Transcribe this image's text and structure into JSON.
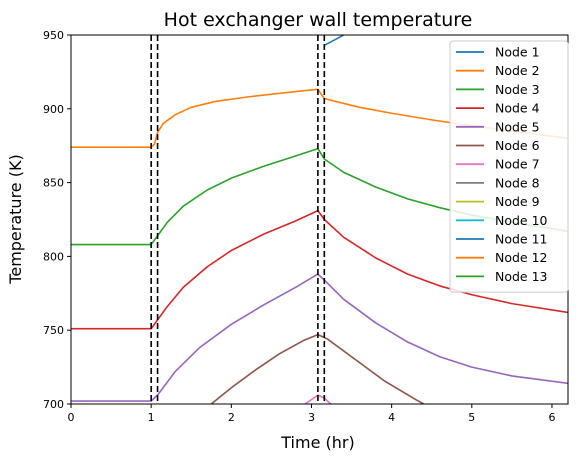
{
  "chart_data": {
    "type": "line",
    "title": "Hot exchanger wall temperature",
    "xlabel": "Time (hr)",
    "ylabel": "Temperature (K)",
    "xlim": [
      0,
      6.2
    ],
    "ylim": [
      700,
      950
    ],
    "xticks": [
      0,
      1,
      2,
      3,
      4,
      5,
      6
    ],
    "yticks": [
      700,
      750,
      800,
      850,
      900,
      950
    ],
    "xtick_labels": [
      "0",
      "1",
      "2",
      "3",
      "4",
      "5",
      "6"
    ],
    "ytick_labels": [
      "700",
      "750",
      "800",
      "850",
      "900",
      "950"
    ],
    "grid": false,
    "legend_position": "top-right",
    "vlines": [
      1.0,
      1.08,
      3.08,
      3.16
    ],
    "vline_style": "dashed-black",
    "series": [
      {
        "name": "Node 1",
        "color": "#1f77b4",
        "x": [
          3.16,
          3.3,
          3.4
        ],
        "y": [
          943,
          947,
          950
        ]
      },
      {
        "name": "Node 2",
        "color": "#ff7f0e",
        "x": [
          0,
          1.0,
          1.04,
          1.08,
          1.15,
          1.3,
          1.5,
          1.8,
          2.2,
          2.6,
          3.0,
          3.08,
          3.12,
          3.16,
          3.3,
          3.6,
          4.0,
          4.5,
          5.0,
          5.5,
          6.2
        ],
        "y": [
          874,
          874,
          876,
          884,
          890,
          896,
          901,
          905,
          908,
          910.5,
          912.8,
          913.2,
          910,
          907,
          905,
          901,
          897,
          892.5,
          888.5,
          885,
          880
        ]
      },
      {
        "name": "Node 3",
        "color": "#2ca02c",
        "x": [
          0,
          1.0,
          1.08,
          1.2,
          1.4,
          1.7,
          2.0,
          2.4,
          2.8,
          3.08,
          3.16,
          3.4,
          3.8,
          4.2,
          4.6,
          5.0,
          5.5,
          6.2
        ],
        "y": [
          808,
          808,
          814,
          823,
          834,
          845,
          853,
          861,
          868,
          873,
          866,
          857,
          847,
          839,
          833,
          828,
          823,
          817
        ]
      },
      {
        "name": "Node 4",
        "color": "#d62728",
        "x": [
          0,
          1.0,
          1.08,
          1.2,
          1.4,
          1.7,
          2.0,
          2.4,
          2.8,
          3.08,
          3.16,
          3.4,
          3.8,
          4.2,
          4.6,
          5.0,
          5.5,
          6.2
        ],
        "y": [
          751,
          751,
          757,
          766,
          779,
          793,
          804,
          815,
          824,
          831,
          825,
          813,
          799,
          788,
          780,
          774,
          768,
          762
        ]
      },
      {
        "name": "Node 5",
        "color": "#9467bd",
        "x": [
          0,
          1.0,
          1.08,
          1.3,
          1.6,
          2.0,
          2.4,
          2.8,
          3.08,
          3.16,
          3.4,
          3.8,
          4.2,
          4.6,
          5.0,
          5.5,
          6.2
        ],
        "y": [
          702,
          702,
          706,
          722,
          738,
          754,
          767,
          779,
          788,
          784,
          771,
          755,
          742,
          732,
          725,
          719,
          714
        ]
      },
      {
        "name": "Node 6",
        "color": "#8c564b",
        "x": [
          1.75,
          2.0,
          2.3,
          2.6,
          2.9,
          3.08,
          3.2,
          3.5,
          3.9,
          4.3,
          4.4
        ],
        "y": [
          700,
          711,
          723,
          734,
          743,
          747,
          744,
          732,
          716,
          703,
          700
        ]
      },
      {
        "name": "Node 7",
        "color": "#e377c2",
        "x": [
          2.92,
          3.0,
          3.08,
          3.16,
          3.24
        ],
        "y": [
          700,
          703,
          706,
          704,
          700
        ]
      },
      {
        "name": "Node 8",
        "color": "#7f7f7f",
        "x": [],
        "y": []
      },
      {
        "name": "Node 9",
        "color": "#bcbd22",
        "x": [],
        "y": []
      },
      {
        "name": "Node 10",
        "color": "#17becf",
        "x": [],
        "y": []
      },
      {
        "name": "Node 11",
        "color": "#1f77b4",
        "x": [],
        "y": []
      },
      {
        "name": "Node 12",
        "color": "#ff7f0e",
        "x": [],
        "y": []
      },
      {
        "name": "Node 13",
        "color": "#2ca02c",
        "x": [],
        "y": []
      }
    ]
  }
}
